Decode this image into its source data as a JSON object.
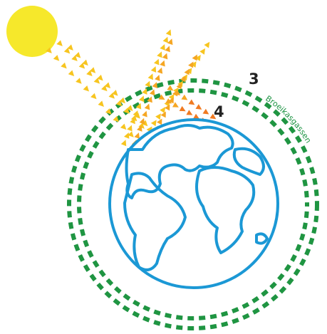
{
  "labels": {
    "layer": "3",
    "earth": "4",
    "greenhouse": "Broeikasgassen"
  }
}
